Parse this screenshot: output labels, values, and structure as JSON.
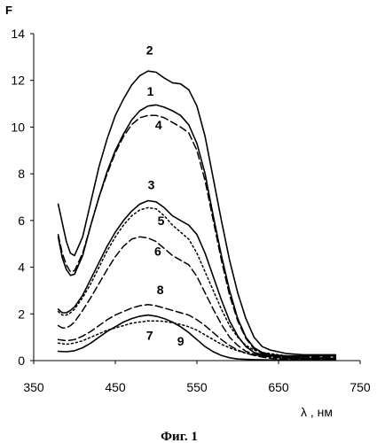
{
  "chart_data": {
    "type": "line",
    "ylabel": "F",
    "xlabel": "λ , нм",
    "caption": "Фиг. 1",
    "xlim": [
      350,
      750
    ],
    "ylim": [
      0,
      14
    ],
    "xticks": [
      350,
      450,
      550,
      650,
      750
    ],
    "yticks": [
      0,
      2,
      4,
      6,
      8,
      10,
      12,
      14
    ],
    "grid": false,
    "series": [
      {
        "label": "1",
        "style": "solid",
        "points": [
          [
            380,
            5.3
          ],
          [
            385,
            4.4
          ],
          [
            390,
            3.9
          ],
          [
            395,
            3.65
          ],
          [
            400,
            3.7
          ],
          [
            410,
            4.5
          ],
          [
            420,
            5.8
          ],
          [
            430,
            7.0
          ],
          [
            440,
            8.1
          ],
          [
            450,
            9.0
          ],
          [
            460,
            9.7
          ],
          [
            470,
            10.3
          ],
          [
            480,
            10.7
          ],
          [
            490,
            10.9
          ],
          [
            500,
            10.95
          ],
          [
            510,
            10.85
          ],
          [
            520,
            10.7
          ],
          [
            530,
            10.5
          ],
          [
            540,
            10.1
          ],
          [
            550,
            9.3
          ],
          [
            560,
            8.0
          ],
          [
            570,
            6.2
          ],
          [
            580,
            4.5
          ],
          [
            590,
            3.0
          ],
          [
            600,
            1.8
          ],
          [
            610,
            1.0
          ],
          [
            620,
            0.55
          ],
          [
            630,
            0.35
          ],
          [
            640,
            0.25
          ],
          [
            660,
            0.2
          ],
          [
            680,
            0.2
          ],
          [
            700,
            0.2
          ],
          [
            720,
            0.2
          ]
        ]
      },
      {
        "label": "2",
        "style": "solid",
        "points": [
          [
            380,
            6.7
          ],
          [
            385,
            5.9
          ],
          [
            390,
            5.1
          ],
          [
            395,
            4.6
          ],
          [
            400,
            4.5
          ],
          [
            410,
            5.3
          ],
          [
            420,
            6.8
          ],
          [
            430,
            8.3
          ],
          [
            440,
            9.5
          ],
          [
            450,
            10.5
          ],
          [
            460,
            11.2
          ],
          [
            470,
            11.8
          ],
          [
            480,
            12.2
          ],
          [
            490,
            12.4
          ],
          [
            500,
            12.35
          ],
          [
            510,
            12.1
          ],
          [
            520,
            11.9
          ],
          [
            530,
            11.85
          ],
          [
            540,
            11.6
          ],
          [
            550,
            10.9
          ],
          [
            560,
            9.6
          ],
          [
            570,
            7.8
          ],
          [
            580,
            6.0
          ],
          [
            590,
            4.3
          ],
          [
            600,
            2.9
          ],
          [
            610,
            1.8
          ],
          [
            620,
            1.0
          ],
          [
            630,
            0.6
          ],
          [
            640,
            0.45
          ],
          [
            660,
            0.3
          ],
          [
            680,
            0.25
          ],
          [
            700,
            0.25
          ],
          [
            720,
            0.25
          ]
        ]
      },
      {
        "label": "3",
        "style": "solid",
        "points": [
          [
            380,
            2.2
          ],
          [
            385,
            2.05
          ],
          [
            390,
            2.05
          ],
          [
            395,
            2.15
          ],
          [
            400,
            2.3
          ],
          [
            410,
            2.8
          ],
          [
            420,
            3.5
          ],
          [
            430,
            4.2
          ],
          [
            440,
            4.9
          ],
          [
            450,
            5.5
          ],
          [
            460,
            6.0
          ],
          [
            470,
            6.4
          ],
          [
            480,
            6.7
          ],
          [
            490,
            6.85
          ],
          [
            500,
            6.8
          ],
          [
            510,
            6.55
          ],
          [
            520,
            6.2
          ],
          [
            530,
            6.0
          ],
          [
            540,
            5.8
          ],
          [
            550,
            5.4
          ],
          [
            560,
            4.6
          ],
          [
            570,
            3.6
          ],
          [
            580,
            2.6
          ],
          [
            590,
            1.7
          ],
          [
            600,
            1.05
          ],
          [
            610,
            0.6
          ],
          [
            620,
            0.35
          ],
          [
            630,
            0.25
          ],
          [
            640,
            0.2
          ],
          [
            660,
            0.15
          ],
          [
            680,
            0.1
          ],
          [
            700,
            0.1
          ],
          [
            720,
            0.1
          ]
        ]
      },
      {
        "label": "4",
        "style": "dashed",
        "points": [
          [
            380,
            5.4
          ],
          [
            385,
            4.6
          ],
          [
            390,
            4.1
          ],
          [
            395,
            3.8
          ],
          [
            400,
            3.85
          ],
          [
            410,
            4.6
          ],
          [
            420,
            5.8
          ],
          [
            430,
            7.0
          ],
          [
            440,
            8.0
          ],
          [
            450,
            8.9
          ],
          [
            460,
            9.6
          ],
          [
            470,
            10.1
          ],
          [
            480,
            10.4
          ],
          [
            490,
            10.5
          ],
          [
            500,
            10.5
          ],
          [
            510,
            10.4
          ],
          [
            520,
            10.2
          ],
          [
            530,
            10.0
          ],
          [
            540,
            9.75
          ],
          [
            550,
            9.0
          ],
          [
            560,
            7.7
          ],
          [
            570,
            6.0
          ],
          [
            580,
            4.3
          ],
          [
            590,
            2.8
          ],
          [
            600,
            1.7
          ],
          [
            610,
            0.95
          ],
          [
            620,
            0.5
          ],
          [
            630,
            0.3
          ],
          [
            640,
            0.22
          ],
          [
            660,
            0.18
          ],
          [
            680,
            0.15
          ],
          [
            700,
            0.15
          ],
          [
            720,
            0.15
          ]
        ]
      },
      {
        "label": "5",
        "style": "dotted",
        "points": [
          [
            380,
            2.1
          ],
          [
            385,
            1.95
          ],
          [
            390,
            1.95
          ],
          [
            395,
            2.05
          ],
          [
            400,
            2.2
          ],
          [
            410,
            2.7
          ],
          [
            420,
            3.3
          ],
          [
            430,
            4.0
          ],
          [
            440,
            4.7
          ],
          [
            450,
            5.3
          ],
          [
            460,
            5.8
          ],
          [
            470,
            6.2
          ],
          [
            480,
            6.45
          ],
          [
            490,
            6.55
          ],
          [
            500,
            6.5
          ],
          [
            510,
            6.2
          ],
          [
            520,
            5.8
          ],
          [
            530,
            5.5
          ],
          [
            540,
            5.2
          ],
          [
            550,
            4.6
          ],
          [
            560,
            3.8
          ],
          [
            570,
            3.0
          ],
          [
            580,
            2.2
          ],
          [
            590,
            1.5
          ],
          [
            600,
            1.0
          ],
          [
            610,
            0.65
          ],
          [
            620,
            0.45
          ],
          [
            630,
            0.35
          ],
          [
            640,
            0.3
          ],
          [
            660,
            0.2
          ],
          [
            680,
            0.15
          ],
          [
            700,
            0.12
          ],
          [
            720,
            0.1
          ]
        ]
      },
      {
        "label": "6",
        "style": "dashed",
        "points": [
          [
            380,
            1.5
          ],
          [
            385,
            1.4
          ],
          [
            390,
            1.4
          ],
          [
            395,
            1.5
          ],
          [
            400,
            1.65
          ],
          [
            410,
            2.15
          ],
          [
            420,
            2.7
          ],
          [
            430,
            3.3
          ],
          [
            440,
            3.9
          ],
          [
            450,
            4.45
          ],
          [
            460,
            4.9
          ],
          [
            470,
            5.2
          ],
          [
            480,
            5.3
          ],
          [
            490,
            5.25
          ],
          [
            500,
            5.1
          ],
          [
            510,
            4.8
          ],
          [
            520,
            4.5
          ],
          [
            530,
            4.3
          ],
          [
            540,
            4.1
          ],
          [
            550,
            3.6
          ],
          [
            560,
            2.9
          ],
          [
            570,
            2.2
          ],
          [
            580,
            1.55
          ],
          [
            590,
            1.0
          ],
          [
            600,
            0.65
          ],
          [
            610,
            0.4
          ],
          [
            620,
            0.28
          ],
          [
            630,
            0.2
          ],
          [
            640,
            0.15
          ],
          [
            660,
            0.1
          ],
          [
            680,
            0.08
          ],
          [
            700,
            0.08
          ],
          [
            720,
            0.08
          ]
        ]
      },
      {
        "label": "7",
        "style": "dotted",
        "points": [
          [
            380,
            0.75
          ],
          [
            390,
            0.7
          ],
          [
            400,
            0.75
          ],
          [
            410,
            0.85
          ],
          [
            420,
            1.0
          ],
          [
            430,
            1.15
          ],
          [
            440,
            1.3
          ],
          [
            450,
            1.4
          ],
          [
            460,
            1.5
          ],
          [
            470,
            1.6
          ],
          [
            480,
            1.65
          ],
          [
            490,
            1.7
          ],
          [
            500,
            1.7
          ],
          [
            510,
            1.68
          ],
          [
            520,
            1.62
          ],
          [
            530,
            1.55
          ],
          [
            540,
            1.45
          ],
          [
            550,
            1.3
          ],
          [
            560,
            1.1
          ],
          [
            570,
            0.9
          ],
          [
            580,
            0.7
          ],
          [
            590,
            0.55
          ],
          [
            600,
            0.42
          ],
          [
            610,
            0.32
          ],
          [
            620,
            0.25
          ],
          [
            630,
            0.2
          ],
          [
            640,
            0.15
          ],
          [
            660,
            0.1
          ],
          [
            680,
            0.08
          ],
          [
            700,
            0.06
          ],
          [
            720,
            0.05
          ]
        ]
      },
      {
        "label": "8",
        "style": "dashed",
        "points": [
          [
            380,
            0.9
          ],
          [
            390,
            0.85
          ],
          [
            400,
            0.9
          ],
          [
            410,
            1.05
          ],
          [
            420,
            1.25
          ],
          [
            430,
            1.5
          ],
          [
            440,
            1.75
          ],
          [
            450,
            1.95
          ],
          [
            460,
            2.1
          ],
          [
            470,
            2.25
          ],
          [
            480,
            2.35
          ],
          [
            490,
            2.4
          ],
          [
            500,
            2.35
          ],
          [
            510,
            2.25
          ],
          [
            520,
            2.15
          ],
          [
            530,
            2.05
          ],
          [
            540,
            1.95
          ],
          [
            550,
            1.75
          ],
          [
            560,
            1.5
          ],
          [
            570,
            1.2
          ],
          [
            580,
            0.9
          ],
          [
            590,
            0.65
          ],
          [
            600,
            0.45
          ],
          [
            610,
            0.32
          ],
          [
            620,
            0.22
          ],
          [
            630,
            0.15
          ],
          [
            640,
            0.1
          ],
          [
            660,
            0.07
          ],
          [
            680,
            0.05
          ],
          [
            700,
            0.05
          ],
          [
            720,
            0.05
          ]
        ]
      },
      {
        "label": "9",
        "style": "solid",
        "points": [
          [
            380,
            0.4
          ],
          [
            390,
            0.38
          ],
          [
            400,
            0.42
          ],
          [
            410,
            0.55
          ],
          [
            420,
            0.75
          ],
          [
            430,
            1.0
          ],
          [
            440,
            1.25
          ],
          [
            450,
            1.45
          ],
          [
            460,
            1.65
          ],
          [
            470,
            1.8
          ],
          [
            480,
            1.9
          ],
          [
            490,
            1.95
          ],
          [
            500,
            1.9
          ],
          [
            510,
            1.8
          ],
          [
            520,
            1.65
          ],
          [
            530,
            1.45
          ],
          [
            540,
            1.2
          ],
          [
            550,
            0.9
          ],
          [
            560,
            0.6
          ],
          [
            570,
            0.38
          ],
          [
            580,
            0.22
          ],
          [
            590,
            0.12
          ],
          [
            600,
            0.07
          ],
          [
            620,
            0.04
          ],
          [
            640,
            0.03
          ],
          [
            680,
            0.02
          ],
          [
            720,
            0.02
          ]
        ]
      }
    ],
    "curve_label_positions": {
      "2": [
        492,
        13.1
      ],
      "1": [
        493,
        11.35
      ],
      "4": [
        503,
        9.9
      ],
      "3": [
        494,
        7.35
      ],
      "5": [
        506,
        5.8
      ],
      "6": [
        502,
        4.5
      ],
      "8": [
        505,
        2.85
      ],
      "7": [
        492,
        0.9
      ],
      "9": [
        530,
        0.65
      ]
    }
  }
}
